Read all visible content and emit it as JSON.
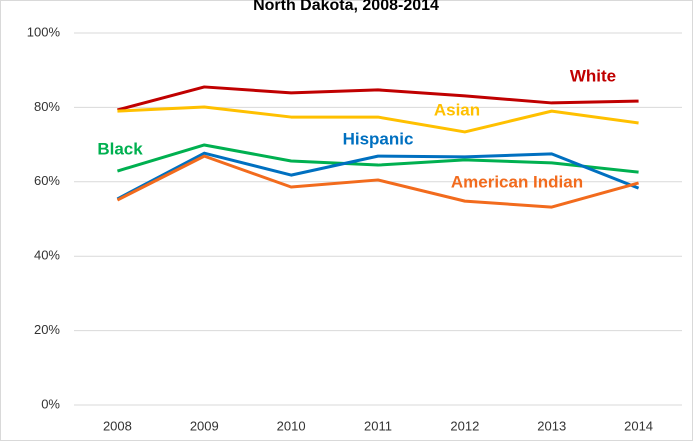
{
  "chart_data": {
    "type": "line",
    "title": "North Dakota, 2008-2014",
    "x": [
      "2008",
      "2009",
      "2010",
      "2011",
      "2012",
      "2013",
      "2014"
    ],
    "series": [
      {
        "name": "White",
        "color": "#c00000",
        "values": [
          79.3,
          85.5,
          83.9,
          84.7,
          83.1,
          81.2,
          81.7
        ]
      },
      {
        "name": "Asian",
        "color": "#ffc000",
        "values": [
          79.0,
          80.1,
          77.4,
          77.4,
          73.4,
          79.0,
          75.8
        ]
      },
      {
        "name": "Black",
        "color": "#00b050",
        "values": [
          62.9,
          69.9,
          65.6,
          64.5,
          65.9,
          65.1,
          62.6
        ]
      },
      {
        "name": "Hispanic",
        "color": "#0070c0",
        "values": [
          55.4,
          67.7,
          61.8,
          66.9,
          66.7,
          67.5,
          58.3
        ]
      },
      {
        "name": "American Indian",
        "color": "#f26b1d",
        "values": [
          55.1,
          66.9,
          58.6,
          60.5,
          54.8,
          53.2,
          59.7
        ]
      }
    ],
    "ylim": [
      0,
      100
    ],
    "yticks": [
      {
        "value": 0,
        "label": "0%"
      },
      {
        "value": 20,
        "label": "20%"
      },
      {
        "value": 40,
        "label": "40%"
      },
      {
        "value": 60,
        "label": "60%"
      },
      {
        "value": 80,
        "label": "80%"
      },
      {
        "value": 100,
        "label": "100%"
      }
    ],
    "grid": true
  }
}
